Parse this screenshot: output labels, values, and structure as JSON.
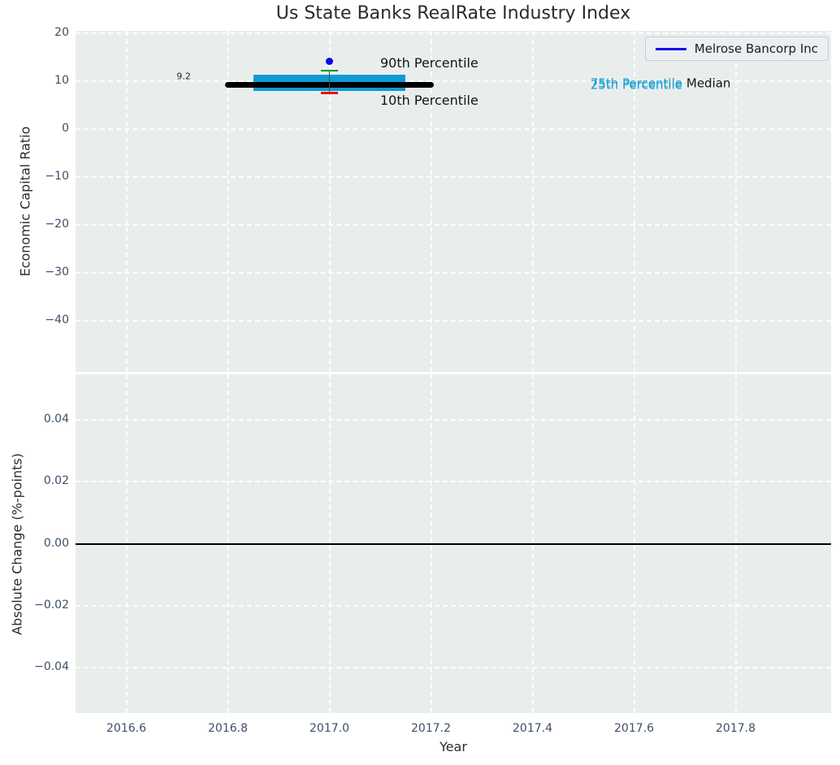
{
  "colors": {
    "plot_background": "#e9eeed",
    "grid": "#ffffff",
    "tick": "#3f4e68",
    "text": "#2b2b2b",
    "box": "#0e9bd2",
    "median": "#000000",
    "p90": "#0d930d",
    "p10": "#f20000",
    "company": "#0a0ae6",
    "whisker_stem": "#4a4a48",
    "zero_line": "#000000",
    "legend_bg": "#edeef2",
    "legend_border": "#c9cbd2"
  },
  "chart_data": [
    {
      "type": "box",
      "title": "Us State Banks RealRate Industry Index",
      "ylabel": "Economic Capital Ratio",
      "xlim": [
        2016.5,
        2017.988
      ],
      "ylim": [
        -50.7,
        20.5
      ],
      "grid": true,
      "legend": {
        "label": "Melrose Bancorp Inc",
        "position": "upper right"
      },
      "yticks": {
        "values": [
          20,
          10,
          0,
          -10,
          -20,
          -30,
          -40
        ],
        "labels": [
          "20",
          "10",
          "0",
          "−10",
          "−20",
          "−30",
          "−40"
        ]
      },
      "series": {
        "industry": {
          "year": 2017.0,
          "box_x": [
            2016.85,
            2017.15
          ],
          "median_x": [
            2016.8,
            2017.2
          ],
          "p10": 7.5,
          "p25": 8.0,
          "median": 9.2,
          "p75": 11.4,
          "p90": 12.2
        },
        "melrose": {
          "x": 2017.0,
          "y": 14.2
        }
      },
      "annotations": [
        {
          "id": "median-value-label",
          "text": "9.2",
          "x": 2016.713,
          "y": 11.0,
          "size": 11,
          "color": "#2a2a2a",
          "anchor": "center"
        },
        {
          "id": "p90-label",
          "text": "90th Percentile",
          "x": 2017.1,
          "y": 13.8,
          "size": 16,
          "color": "#141414",
          "anchor": "left"
        },
        {
          "id": "p10-label",
          "text": "10th Percentile",
          "x": 2017.1,
          "y": 5.9,
          "size": 16,
          "color": "#141414",
          "anchor": "left"
        },
        {
          "id": "p75-label",
          "text": "75th Percentile",
          "x": 2017.514,
          "y": 9.55,
          "size": 15,
          "color": "#189fd6",
          "anchor": "left"
        },
        {
          "id": "p25-label",
          "text": "25th Percentile",
          "x": 2017.514,
          "y": 9.22,
          "size": 15,
          "color": "#189fd6",
          "anchor": "left"
        },
        {
          "id": "median-label",
          "text": "Median",
          "x": 2017.703,
          "y": 9.4,
          "size": 15,
          "color": "#141414",
          "anchor": "left"
        }
      ]
    },
    {
      "type": "line",
      "ylabel": "Absolute Change (%-points)",
      "xlabel": "Year",
      "xlim": [
        2016.5,
        2017.988
      ],
      "ylim": [
        -0.0546,
        0.0546
      ],
      "grid": true,
      "yticks": {
        "values": [
          0.04,
          0.02,
          0.0,
          -0.02,
          -0.04
        ],
        "labels": [
          "0.04",
          "0.02",
          "0.00",
          "−0.02",
          "−0.04"
        ]
      },
      "xticks": {
        "values": [
          2016.6,
          2016.8,
          2017.0,
          2017.2,
          2017.4,
          2017.6,
          2017.8
        ],
        "labels": [
          "2016.6",
          "2016.8",
          "2017.0",
          "2017.2",
          "2017.4",
          "2017.6",
          "2017.8"
        ]
      },
      "zero_line": 0.0
    }
  ]
}
